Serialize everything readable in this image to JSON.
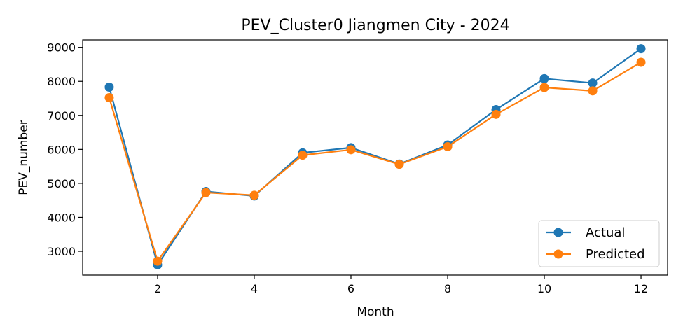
{
  "chart_data": {
    "type": "line",
    "title": "PEV_Cluster0 Jiangmen City - 2024",
    "xlabel": "Month",
    "ylabel": "PEV_number",
    "xlim": [
      0.45,
      12.55
    ],
    "ylim": [
      2300,
      9220
    ],
    "x": [
      1,
      2,
      3,
      4,
      5,
      6,
      7,
      8,
      9,
      10,
      11,
      12
    ],
    "xticks": [
      2,
      4,
      6,
      8,
      10,
      12
    ],
    "yticks": [
      3000,
      4000,
      5000,
      6000,
      7000,
      8000,
      9000
    ],
    "grid": false,
    "legend_position": "lower-right",
    "series": [
      {
        "name": "Actual",
        "color": "#1f77b4",
        "marker": "circle",
        "values": [
          7830,
          2600,
          4760,
          4630,
          5900,
          6050,
          5570,
          6130,
          7170,
          8080,
          7950,
          8960
        ]
      },
      {
        "name": "Predicted",
        "color": "#ff7f0e",
        "marker": "circle",
        "values": [
          7520,
          2710,
          4730,
          4650,
          5830,
          5990,
          5560,
          6080,
          7030,
          7820,
          7720,
          8560
        ]
      }
    ]
  }
}
